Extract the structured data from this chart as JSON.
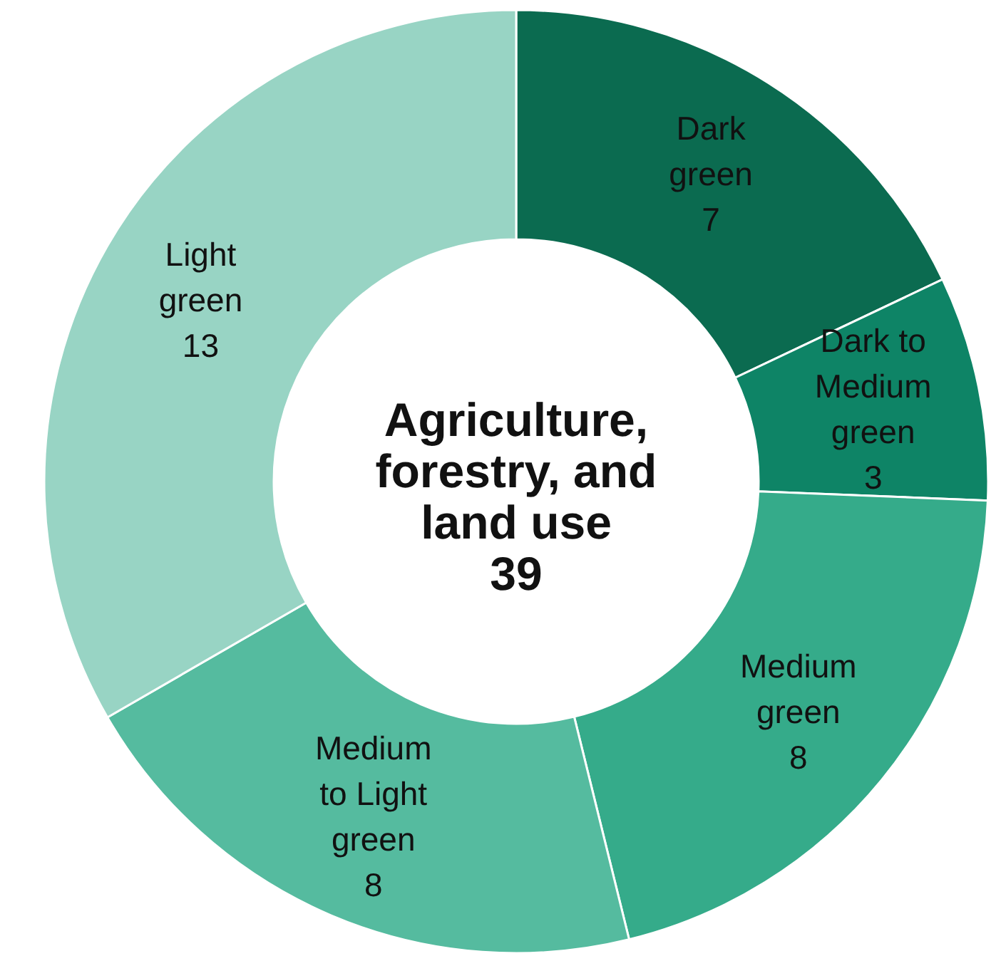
{
  "chart_data": {
    "type": "donut",
    "title": "Agriculture, forestry, and land use",
    "annotations": [
      "39"
    ],
    "categories": [
      "Dark green",
      "Dark to Medium green",
      "Medium green",
      "Medium to Light green",
      "Light green"
    ],
    "values": [
      7,
      3,
      8,
      8,
      13
    ],
    "colors": [
      "#0b6b50",
      "#0e8466",
      "#35ab8a",
      "#55bb9f",
      "#98d4c4"
    ],
    "data_labels": true
  }
}
